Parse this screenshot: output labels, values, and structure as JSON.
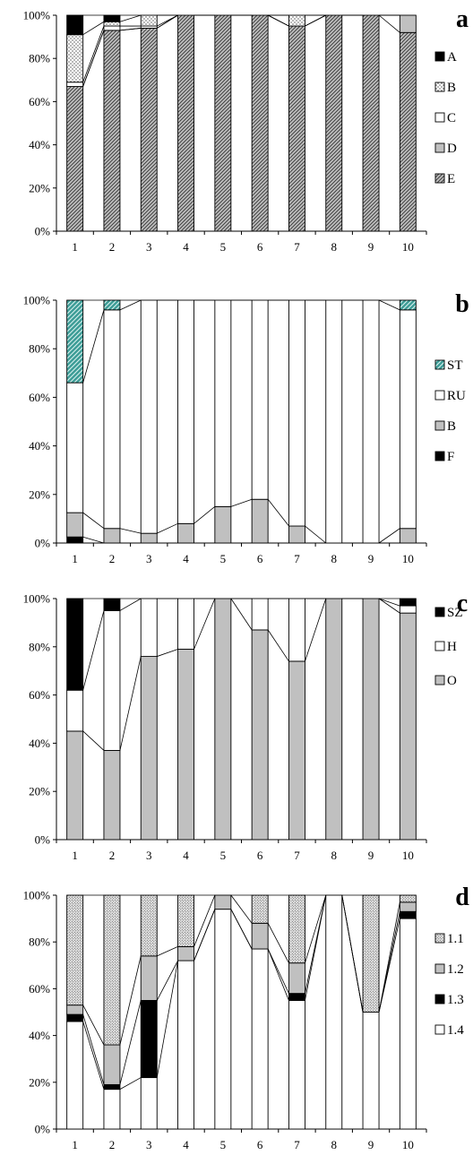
{
  "chart_data": [
    {
      "panel": "a",
      "type": "bar",
      "stacked": true,
      "percent": true,
      "categories": [
        "1",
        "2",
        "3",
        "4",
        "5",
        "6",
        "7",
        "8",
        "9",
        "10"
      ],
      "yticks": [
        "0%",
        "20%",
        "40%",
        "60%",
        "80%",
        "100%"
      ],
      "ylim": [
        0,
        100
      ],
      "series": [
        {
          "name": "E",
          "pattern": "diag",
          "values": [
            67,
            93,
            94,
            100,
            100,
            100,
            95,
            100,
            100,
            92
          ]
        },
        {
          "name": "D",
          "pattern": "gray",
          "values": [
            0,
            0,
            0,
            0,
            0,
            0,
            0,
            0,
            0,
            8
          ]
        },
        {
          "name": "C",
          "pattern": "white",
          "values": [
            2,
            2,
            1,
            0,
            0,
            0,
            0,
            0,
            0,
            0
          ]
        },
        {
          "name": "B",
          "pattern": "dots",
          "values": [
            22,
            2,
            5,
            0,
            0,
            0,
            5,
            0,
            0,
            0
          ]
        },
        {
          "name": "A",
          "pattern": "black",
          "values": [
            9,
            3,
            0,
            0,
            0,
            0,
            0,
            0,
            0,
            0
          ]
        }
      ],
      "legend": [
        "A",
        "B",
        "C",
        "D",
        "E"
      ]
    },
    {
      "panel": "b",
      "type": "bar",
      "stacked": true,
      "percent": true,
      "categories": [
        "1",
        "2",
        "3",
        "4",
        "5",
        "6",
        "7",
        "8",
        "9",
        "10"
      ],
      "yticks": [
        "0%",
        "20%",
        "40%",
        "60%",
        "80%",
        "100%"
      ],
      "ylim": [
        0,
        100
      ],
      "series": [
        {
          "name": "F",
          "pattern": "black",
          "values": [
            2.5,
            0,
            0,
            0,
            0,
            0,
            0,
            0,
            0,
            0
          ]
        },
        {
          "name": "B",
          "pattern": "gray",
          "values": [
            10,
            6,
            4,
            8,
            15,
            18,
            7,
            0,
            0,
            6
          ]
        },
        {
          "name": "RU",
          "pattern": "white",
          "values": [
            53.5,
            90,
            96,
            92,
            85,
            82,
            93,
            100,
            100,
            90
          ]
        },
        {
          "name": "ST",
          "pattern": "teal",
          "values": [
            34,
            4,
            0,
            0,
            0,
            0,
            0,
            0,
            0,
            4
          ]
        }
      ],
      "legend": [
        "ST",
        "RU",
        "B",
        "F"
      ]
    },
    {
      "panel": "c",
      "type": "bar",
      "stacked": true,
      "percent": true,
      "categories": [
        "1",
        "2",
        "3",
        "4",
        "5",
        "6",
        "7",
        "8",
        "9",
        "10"
      ],
      "yticks": [
        "0%",
        "20%",
        "40%",
        "60%",
        "80%",
        "100%"
      ],
      "ylim": [
        0,
        100
      ],
      "series": [
        {
          "name": "O",
          "pattern": "gray",
          "values": [
            45,
            37,
            76,
            79,
            100,
            87,
            74,
            100,
            100,
            94
          ]
        },
        {
          "name": "H",
          "pattern": "white",
          "values": [
            17,
            58,
            24,
            21,
            0,
            13,
            26,
            0,
            0,
            3
          ]
        },
        {
          "name": "SZ",
          "pattern": "black",
          "values": [
            38,
            5,
            0,
            0,
            0,
            0,
            0,
            0,
            0,
            3
          ]
        }
      ],
      "legend": [
        "SZ",
        "H",
        "O"
      ]
    },
    {
      "panel": "d",
      "type": "bar",
      "stacked": true,
      "percent": true,
      "categories": [
        "1",
        "2",
        "3",
        "4",
        "5",
        "6",
        "7",
        "8",
        "9",
        "10"
      ],
      "yticks": [
        "0%",
        "20%",
        "40%",
        "60%",
        "80%",
        "100%"
      ],
      "ylim": [
        0,
        100
      ],
      "series": [
        {
          "name": "1.4",
          "pattern": "white",
          "values": [
            46,
            17,
            22,
            72,
            94,
            77,
            55,
            100,
            50,
            90
          ]
        },
        {
          "name": "1.3",
          "pattern": "black",
          "values": [
            3,
            2,
            33,
            0,
            0,
            0,
            3,
            0,
            0,
            3
          ]
        },
        {
          "name": "1.2",
          "pattern": "gray",
          "values": [
            4,
            17,
            19,
            6,
            6,
            11,
            13,
            0,
            0,
            4
          ]
        },
        {
          "name": "1.1",
          "pattern": "fine",
          "values": [
            47,
            64,
            26,
            22,
            0,
            12,
            29,
            0,
            50,
            3
          ]
        }
      ],
      "legend": [
        "1.1",
        "1.2",
        "1.3",
        "1.4"
      ]
    }
  ]
}
